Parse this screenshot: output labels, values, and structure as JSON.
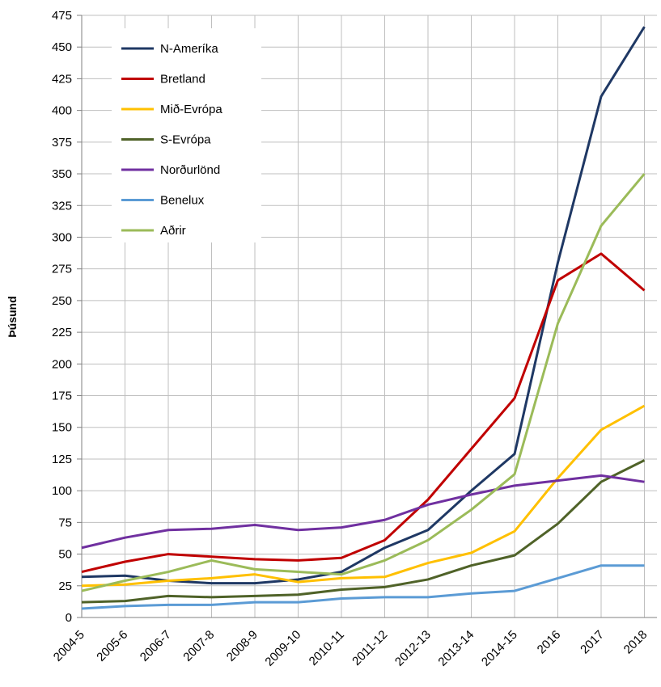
{
  "chart_data": {
    "type": "line",
    "y_label": "Þúsund",
    "categories": [
      "2004-5",
      "2005-6",
      "2006-7",
      "2007-8",
      "2008-9",
      "2009-10",
      "2010-11",
      "2011-12",
      "2012-13",
      "2013-14",
      "2014-15",
      "2016",
      "2017",
      "2018"
    ],
    "series": [
      {
        "name": "N-Ameríka",
        "color": "#1f3864",
        "values": [
          32,
          33,
          29,
          27,
          27,
          30,
          36,
          55,
          69,
          100,
          129,
          280,
          411,
          466
        ]
      },
      {
        "name": "Bretland",
        "color": "#c00000",
        "values": [
          36,
          44,
          50,
          48,
          46,
          45,
          47,
          61,
          93,
          133,
          173,
          266,
          287,
          258
        ]
      },
      {
        "name": "Mið-Evrópa",
        "color": "#ffc000",
        "values": [
          25,
          26,
          29,
          31,
          34,
          28,
          31,
          32,
          43,
          51,
          68,
          110,
          148,
          167
        ]
      },
      {
        "name": "S-Evrópa",
        "color": "#4f6228",
        "values": [
          12,
          13,
          17,
          16,
          17,
          18,
          22,
          24,
          30,
          41,
          49,
          74,
          107,
          124
        ]
      },
      {
        "name": "Norðurlönd",
        "color": "#7030a0",
        "values": [
          55,
          63,
          69,
          70,
          73,
          69,
          71,
          77,
          89,
          97,
          104,
          108,
          112,
          107
        ]
      },
      {
        "name": "Benelux",
        "color": "#5b9bd5",
        "values": [
          7,
          9,
          10,
          10,
          12,
          12,
          15,
          16,
          16,
          19,
          21,
          31,
          41,
          41
        ]
      },
      {
        "name": "Aðrir",
        "color": "#9bbb59",
        "values": [
          21,
          29,
          36,
          45,
          38,
          36,
          34,
          45,
          61,
          85,
          113,
          232,
          309,
          350
        ]
      }
    ],
    "ylim": [
      0,
      475
    ],
    "yticks": [
      0,
      25,
      50,
      75,
      100,
      125,
      150,
      175,
      200,
      225,
      250,
      275,
      300,
      325,
      350,
      375,
      400,
      425,
      450,
      475
    ],
    "grid": true,
    "legend": "upper left"
  }
}
